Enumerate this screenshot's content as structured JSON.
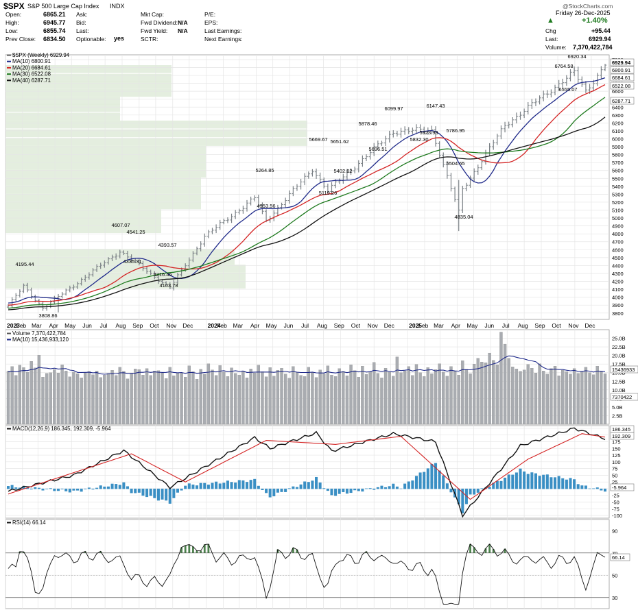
{
  "header": {
    "symbol": "$SPX",
    "name": "S&P 500 Large Cap Index",
    "exchange": "INDX",
    "watermark": "@StockCharts.com",
    "date": "Friday  26-Dec-2025",
    "change_pct": "+1.40%",
    "chg_label": "Chg",
    "chg_value": "+95.44",
    "last_label": "Last:",
    "last_value": "6929.94",
    "volume_label": "Volume:",
    "volume_value": "7,370,422,784",
    "col1": [
      {
        "label": "Open:",
        "value": "6865.21"
      },
      {
        "label": "High:",
        "value": "6945.77"
      },
      {
        "label": "Low:",
        "value": "6855.74"
      },
      {
        "label": "Prev Close:",
        "value": "6834.50"
      }
    ],
    "col2": [
      {
        "label": "Ask:",
        "value": ""
      },
      {
        "label": "Bid:",
        "value": ""
      },
      {
        "label": "Last:",
        "value": ""
      },
      {
        "label": "Optionable:",
        "value": "yes"
      }
    ],
    "col3": [
      {
        "label": "Mkt Cap:",
        "value": ""
      },
      {
        "label": "Fwd Dividend:",
        "value": "N/A"
      },
      {
        "label": "Fwd Yield:",
        "value": "N/A"
      },
      {
        "label": "SCTR:",
        "value": ""
      }
    ],
    "col4": [
      {
        "label": "P/E:",
        "value": ""
      },
      {
        "label": "EPS:",
        "value": ""
      },
      {
        "label": "Last Earnings:",
        "value": ""
      },
      {
        "label": "Next Earnings:",
        "value": ""
      }
    ]
  },
  "price_legend": [
    {
      "text": "$SPX (Weekly) 6929.94",
      "color": "#555555"
    },
    {
      "text": "MA(10) 6800.91",
      "color": "#1f2a8a"
    },
    {
      "text": "MA(20) 6684.61",
      "color": "#d42424"
    },
    {
      "text": "MA(30) 6522.08",
      "color": "#1e7a1e"
    },
    {
      "text": "MA(40) 6287.71",
      "color": "#111111"
    }
  ],
  "volume_legend": [
    {
      "text": "Volume 7,370,422,784",
      "color": "#555555"
    },
    {
      "text": "MA(10) 15,436,933,120",
      "color": "#1f2a8a"
    }
  ],
  "macd_legend": [
    {
      "text": "MACD(12,26,9) 186.345, 192.309, -5.964",
      "color": "#111111"
    }
  ],
  "rsi_legend": [
    {
      "text": "RSI(14) 66.14",
      "color": "#111111"
    }
  ],
  "x_axis_labels": [
    "2023",
    "Feb",
    "Mar",
    "Apr",
    "May",
    "Jun",
    "Jul",
    "Aug",
    "Sep",
    "Oct",
    "Nov",
    "Dec",
    "2024",
    "Feb",
    "Mar",
    "Apr",
    "May",
    "Jun",
    "Jul",
    "Aug",
    "Sep",
    "Oct",
    "Nov",
    "Dec",
    "2025",
    "Feb",
    "Mar",
    "Apr",
    "May",
    "Jun",
    "Jul",
    "Aug",
    "Sep",
    "Oct",
    "Nov",
    "Dec"
  ],
  "colors": {
    "bar": "#7a8085",
    "ma10": "#1f2a8a",
    "ma20": "#d42424",
    "ma30": "#1e7a1e",
    "ma40": "#111111",
    "volume_bar": "#a9acb1",
    "macd_hist": "#3a8fc4",
    "rsi_fill": "#2e6b2e",
    "volume_profile": "#e1ecdb",
    "grid": "#e5e5e5"
  },
  "chart_data": [
    {
      "type": "ohlc",
      "title": "$SPX (Weekly) 6929.94",
      "price_axis_ticks": [
        "3800",
        "3900",
        "4000",
        "4100",
        "4200",
        "4300",
        "4400",
        "4500",
        "4600",
        "4700",
        "4800",
        "4900",
        "5000",
        "5100",
        "5200",
        "5300",
        "5400",
        "5500",
        "5600",
        "5700",
        "5800",
        "5900",
        "6000",
        "6100",
        "6200",
        "6300",
        "6400",
        "6500",
        "6600",
        "6700",
        "6800",
        "6900",
        "7000"
      ],
      "ylim": [
        3720,
        7060
      ],
      "right_axis_tags": [
        {
          "text": "6929.94",
          "bold": true
        },
        {
          "text": "6800.91",
          "bold": false
        },
        {
          "text": "6684.61",
          "bold": false
        },
        {
          "text": "6522.08",
          "bold": false
        },
        {
          "text": "6287.71",
          "bold": false
        }
      ],
      "annotations": [
        "4195.44",
        "3808.86",
        "4607.07",
        "4541.25",
        "4335.31",
        "4393.57",
        "4216.45",
        "4103.78",
        "5264.85",
        "4953.56",
        "5669.67",
        "5651.62",
        "5402.62",
        "5119.26",
        "5878.46",
        "5696.51",
        "6099.97",
        "6147.43",
        "5923.93",
        "5832.30",
        "5786.95",
        "5504.65",
        "4835.04",
        "6764.58",
        "6920.34",
        "6555.07"
      ],
      "key_points": [
        {
          "date": "2023-01-06",
          "close": 3895
        },
        {
          "date": "2023-02-03",
          "close": 4136
        },
        {
          "date": "2023-03-10",
          "close": 3862
        },
        {
          "date": "2023-07-28",
          "close": 4582
        },
        {
          "date": "2023-10-27",
          "close": 4117
        },
        {
          "date": "2023-12-29",
          "close": 4770
        },
        {
          "date": "2024-03-29",
          "close": 5254
        },
        {
          "date": "2024-04-19",
          "close": 4967
        },
        {
          "date": "2024-07-12",
          "close": 5615
        },
        {
          "date": "2024-08-09",
          "close": 5344
        },
        {
          "date": "2024-12-06",
          "close": 6090
        },
        {
          "date": "2025-02-14",
          "close": 6114
        },
        {
          "date": "2025-04-04",
          "close": 5074
        },
        {
          "date": "2025-04-11",
          "close": 5363
        },
        {
          "date": "2025-06-27",
          "close": 6173
        },
        {
          "date": "2025-10-31",
          "close": 6840
        },
        {
          "date": "2025-11-21",
          "close": 6603
        },
        {
          "date": "2025-12-26",
          "close": 6929.94
        }
      ],
      "moving_averages": [
        "MA(10)",
        "MA(20)",
        "MA(30)",
        "MA(40)"
      ]
    },
    {
      "type": "bar",
      "title": "Volume",
      "y_ticks": [
        "2.5B",
        "5.0B",
        "7.5B",
        "10.0B",
        "12.5B",
        "15.0B",
        "17.5B",
        "20.0B",
        "22.5B",
        "25.0B"
      ],
      "ylim": [
        0,
        27.5
      ],
      "unit": "billions",
      "right_axis_tags": [
        "15436933",
        "7370422"
      ],
      "values_billions": [
        15.5,
        16.8,
        14.2,
        17.2,
        16.5,
        15.1,
        18.3,
        16.4,
        20.1,
        13.7,
        14.8,
        15.0,
        15.9,
        14.9,
        17.3,
        15.5,
        13.8,
        15.2,
        14.7,
        13.5,
        15.0,
        15.4,
        14.4,
        15.5,
        13.6,
        14.3,
        14.8,
        15.7,
        14.2,
        16.6,
        15.4,
        13.2,
        14.8,
        16.1,
        15.9,
        14.3,
        16.2,
        14.2,
        15.5,
        15.6,
        14.9,
        13.3,
        16.6,
        14.1,
        15.0,
        15.0,
        13.7,
        17.0,
        15.3,
        13.1,
        16.0,
        14.6,
        17.6,
        15.8,
        14.2,
        17.1,
        15.2,
        13.9,
        16.4,
        14.8,
        14.3,
        15.5,
        13.5,
        16.1,
        14.9,
        17.2,
        15.3,
        13.8,
        16.5,
        14.0,
        15.7,
        16.3,
        14.6,
        13.4,
        16.8,
        15.1,
        14.2,
        13.9,
        16.6,
        15.0,
        13.6,
        15.8,
        14.7,
        17.0,
        14.3,
        13.9,
        16.2,
        15.4,
        14.1,
        17.3,
        15.6,
        13.7,
        16.9,
        14.5,
        15.2,
        18.0,
        14.8,
        13.5,
        16.3,
        15.1,
        14.0,
        19.6,
        15.0,
        15.5,
        16.8,
        14.2,
        17.4,
        15.0,
        13.9,
        16.5,
        14.7,
        15.9,
        17.6,
        15.2,
        14.0,
        16.8,
        15.5,
        14.3,
        18.5,
        16.0,
        14.7,
        17.5,
        19.2,
        18.1,
        17.9,
        20.7,
        18.6,
        17.3,
        26.8,
        23.3,
        19.2,
        16.7,
        16.1,
        15.4,
        15.8,
        17.4,
        16.3,
        14.9,
        17.6,
        15.5,
        14.6,
        16.2,
        16.9,
        14.1,
        15.7,
        15.3,
        14.6,
        16.2,
        14.8,
        15.2,
        16.6,
        15.0,
        14.4,
        16.9,
        15.3,
        14.7,
        17.1,
        16.2,
        15.0,
        16.6,
        17.3,
        16.0,
        15.1,
        17.0,
        20.1,
        7.37
      ],
      "ma_name": "MA(10)"
    },
    {
      "type": "line",
      "title": "MACD(12,26,9)",
      "y_ticks": [
        "-100",
        "-75",
        "-50",
        "-25",
        "0",
        "25",
        "50",
        "75",
        "100",
        "125",
        "150",
        "175",
        "200",
        "225"
      ],
      "ylim": [
        -110,
        235
      ],
      "series": [
        {
          "name": "MACD",
          "key_points": [
            {
              "date": "2023-01-06",
              "value": -10
            },
            {
              "date": "2023-05-05",
              "value": 50
            },
            {
              "date": "2023-08-04",
              "value": 142
            },
            {
              "date": "2023-10-27",
              "value": 5
            },
            {
              "date": "2024-03-29",
              "value": 190
            },
            {
              "date": "2024-04-26",
              "value": 150
            },
            {
              "date": "2024-07-19",
              "value": 208
            },
            {
              "date": "2024-08-16",
              "value": 140
            },
            {
              "date": "2024-12-06",
              "value": 205
            },
            {
              "date": "2025-02-21",
              "value": 175
            },
            {
              "date": "2025-04-11",
              "value": -100
            },
            {
              "date": "2025-07-25",
              "value": 160
            },
            {
              "date": "2025-10-31",
              "value": 225
            },
            {
              "date": "2025-12-26",
              "value": 186.345
            }
          ]
        },
        {
          "name": "Signal",
          "key_points": [
            {
              "date": "2023-01-06",
              "value": -20
            },
            {
              "date": "2023-08-18",
              "value": 130
            },
            {
              "date": "2023-11-24",
              "value": 25
            },
            {
              "date": "2024-04-19",
              "value": 180
            },
            {
              "date": "2024-08-23",
              "value": 165
            },
            {
              "date": "2024-12-20",
              "value": 195
            },
            {
              "date": "2025-04-25",
              "value": -40
            },
            {
              "date": "2025-08-08",
              "value": 110
            },
            {
              "date": "2025-11-14",
              "value": 205
            },
            {
              "date": "2025-12-26",
              "value": 192.309
            }
          ]
        }
      ],
      "right_axis_tags": [
        "186.345",
        "192.309",
        "-5.964"
      ]
    },
    {
      "type": "line",
      "title": "RSI(14)",
      "y_ticks": [
        "30",
        "50",
        "70",
        "90"
      ],
      "ylim": [
        20,
        100
      ],
      "thresholds": [
        70,
        30
      ],
      "last": 66.14,
      "right_axis_tag": "66.14"
    }
  ]
}
